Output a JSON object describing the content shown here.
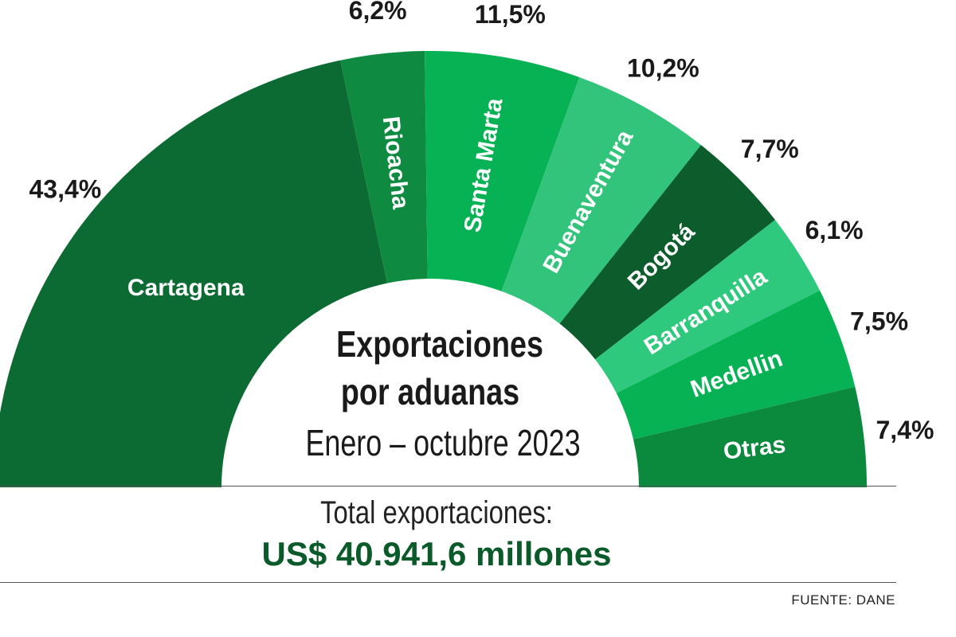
{
  "chart_data": {
    "type": "pie",
    "title": "Exportaciones por aduanas",
    "subtitle": "Enero – octubre 2023",
    "slices": [
      {
        "label": "Cartagena",
        "value": 43.4,
        "value_label": "43,4%",
        "color": "#0b6b32"
      },
      {
        "label": "Rioacha",
        "value": 6.2,
        "value_label": "6,2%",
        "color": "#0f8a41"
      },
      {
        "label": "Santa Marta",
        "value": 11.5,
        "value_label": "11,5%",
        "color": "#06b254"
      },
      {
        "label": "Buenaventura",
        "value": 10.2,
        "value_label": "10,2%",
        "color": "#31c47a"
      },
      {
        "label": "Bogotá",
        "value": 7.7,
        "value_label": "7,7%",
        "color": "#0d5c2c"
      },
      {
        "label": "Barranquilla",
        "value": 6.1,
        "value_label": "6,1%",
        "color": "#2ec97c"
      },
      {
        "label": "Medellin",
        "value": 7.5,
        "value_label": "7,5%",
        "color": "#06b254"
      },
      {
        "label": "Otras",
        "value": 7.4,
        "value_label": "7,4%",
        "color": "#0b8a3e"
      }
    ],
    "legend": "none"
  },
  "footer": {
    "total_label": "Total exportaciones:",
    "total_value": "US$ 40.941,6 millones",
    "source": "FUENTE: DANE"
  }
}
